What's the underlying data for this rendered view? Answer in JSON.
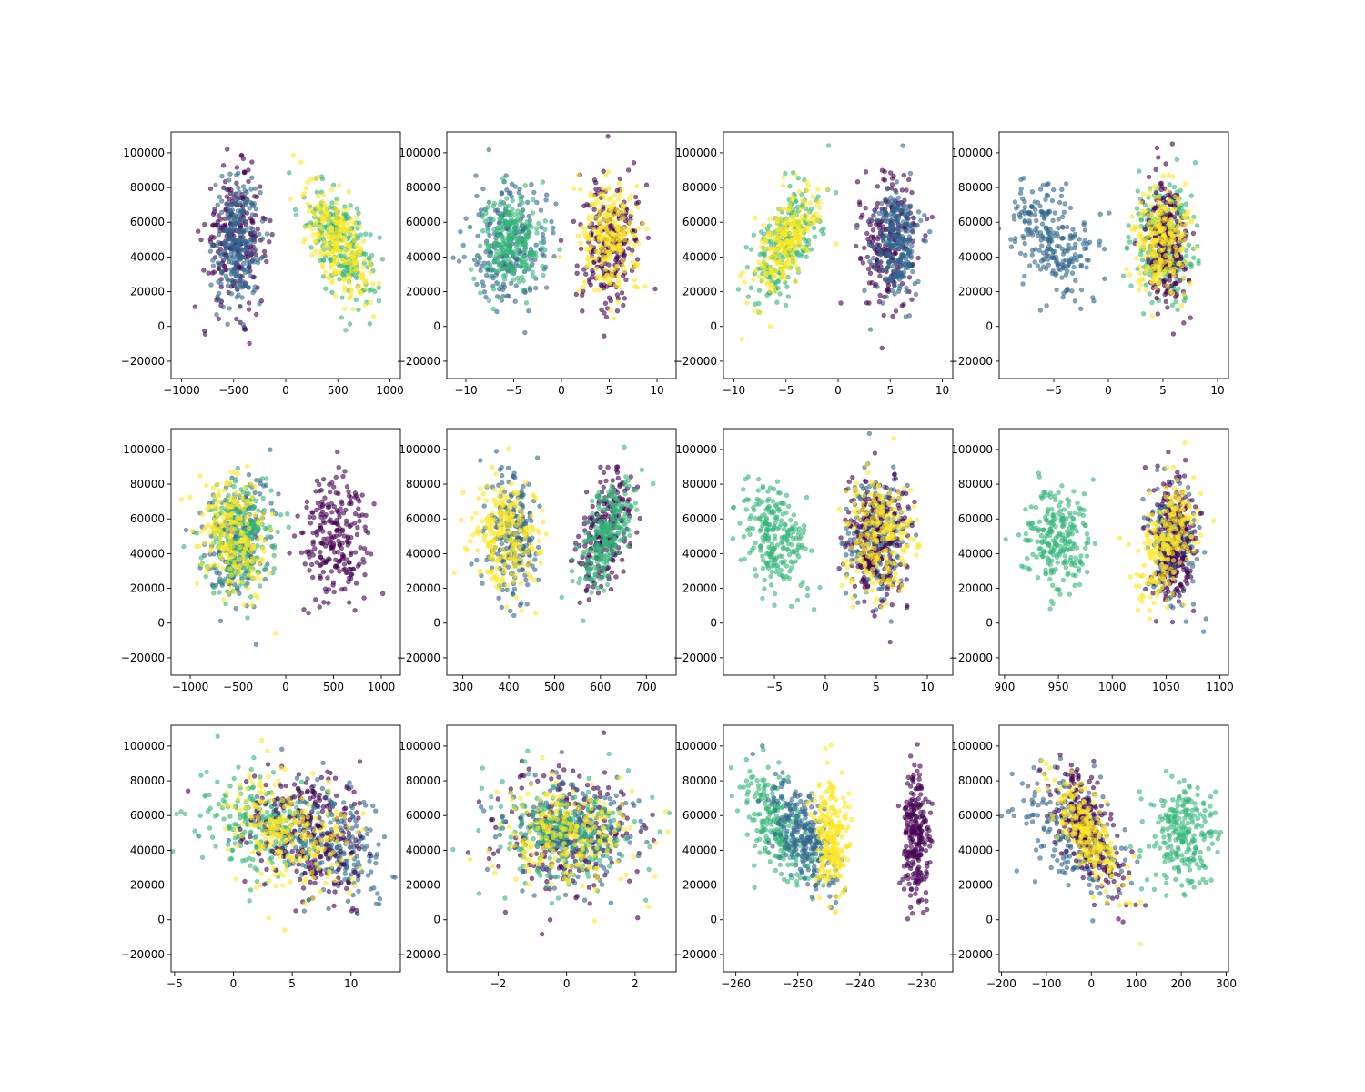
{
  "figure": {
    "colors": {
      "series_1": "#440154",
      "series_2": "#31688e",
      "series_3": "#35b779",
      "series_4": "#fde725"
    },
    "point_alpha": 0.6
  },
  "chart_data": [
    {
      "type": "scatter",
      "grid": false,
      "xlim": [
        -1100,
        1100
      ],
      "ylim": [
        -30000,
        112000
      ],
      "xticks": [
        -1000,
        -500,
        0,
        500,
        1000
      ],
      "xticklabels": [
        "−1000",
        "−500",
        "0",
        "500",
        "1000"
      ],
      "yticks": [
        -20000,
        0,
        20000,
        40000,
        60000,
        80000,
        100000
      ],
      "yticklabels": [
        "−20000",
        "0",
        "20000",
        "40000",
        "60000",
        "80000",
        "100000"
      ],
      "clusters": [
        {
          "color": "series_1",
          "cx": -480,
          "cy": 50000,
          "sx": 150,
          "sy": 19000,
          "rho": 0,
          "n": 240
        },
        {
          "color": "series_2",
          "cx": -460,
          "cy": 48000,
          "sx": 110,
          "sy": 18000,
          "rho": 0,
          "n": 240
        },
        {
          "color": "series_3",
          "cx": 530,
          "cy": 48000,
          "sx": 170,
          "sy": 17000,
          "rho": -0.55,
          "n": 240
        },
        {
          "color": "series_4",
          "cx": 520,
          "cy": 47000,
          "sx": 150,
          "sy": 17000,
          "rho": -0.6,
          "n": 240
        }
      ]
    },
    {
      "type": "scatter",
      "grid": false,
      "xlim": [
        -12,
        12
      ],
      "ylim": [
        -30000,
        112000
      ],
      "xticks": [
        -10,
        -5,
        0,
        5,
        10
      ],
      "xticklabels": [
        "−10",
        "−5",
        "0",
        "5",
        "10"
      ],
      "yticks": [
        -20000,
        0,
        20000,
        40000,
        60000,
        80000,
        100000
      ],
      "yticklabels": [
        "−20000",
        "0",
        "20000",
        "40000",
        "60000",
        "80000",
        "100000"
      ],
      "clusters": [
        {
          "color": "series_2",
          "cx": -5.5,
          "cy": 48000,
          "sx": 2.0,
          "sy": 17000,
          "rho": 0,
          "n": 240
        },
        {
          "color": "series_3",
          "cx": -5.2,
          "cy": 49000,
          "sx": 1.6,
          "sy": 14000,
          "rho": 0,
          "n": 240
        },
        {
          "color": "series_1",
          "cx": 5.0,
          "cy": 48000,
          "sx": 1.5,
          "sy": 19000,
          "rho": 0,
          "n": 240
        },
        {
          "color": "series_4",
          "cx": 5.0,
          "cy": 50000,
          "sx": 1.5,
          "sy": 16000,
          "rho": 0,
          "n": 240
        }
      ]
    },
    {
      "type": "scatter",
      "grid": false,
      "xlim": [
        -11,
        11
      ],
      "ylim": [
        -30000,
        112000
      ],
      "xticks": [
        -10,
        -5,
        0,
        5,
        10
      ],
      "xticklabels": [
        "−10",
        "−5",
        "0",
        "5",
        "10"
      ],
      "yticks": [
        -20000,
        0,
        20000,
        40000,
        60000,
        80000,
        100000
      ],
      "yticklabels": [
        "−20000",
        "0",
        "20000",
        "40000",
        "60000",
        "80000",
        "100000"
      ],
      "clusters": [
        {
          "color": "series_3",
          "cx": -5.0,
          "cy": 48000,
          "sx": 1.7,
          "sy": 17000,
          "rho": 0.6,
          "n": 240
        },
        {
          "color": "series_4",
          "cx": -5.0,
          "cy": 47000,
          "sx": 1.5,
          "sy": 16000,
          "rho": 0.6,
          "n": 240
        },
        {
          "color": "series_1",
          "cx": 5.0,
          "cy": 50000,
          "sx": 1.4,
          "sy": 19000,
          "rho": 0,
          "n": 240
        },
        {
          "color": "series_2",
          "cx": 5.5,
          "cy": 47000,
          "sx": 1.1,
          "sy": 17000,
          "rho": 0,
          "n": 240
        }
      ]
    },
    {
      "type": "scatter",
      "grid": false,
      "xlim": [
        -10,
        11
      ],
      "ylim": [
        -30000,
        112000
      ],
      "xticks": [
        -5,
        0,
        5,
        10
      ],
      "xticklabels": [
        "−5",
        "0",
        "5",
        "10"
      ],
      "yticks": [
        -20000,
        0,
        20000,
        40000,
        60000,
        80000,
        100000
      ],
      "yticklabels": [
        "−20000",
        "0",
        "20000",
        "40000",
        "60000",
        "80000",
        "100000"
      ],
      "clusters": [
        {
          "color": "series_2",
          "cx": -5.2,
          "cy": 50000,
          "sx": 1.8,
          "sy": 17000,
          "rho": -0.3,
          "n": 240
        },
        {
          "color": "series_3",
          "cx": 5.0,
          "cy": 50000,
          "sx": 1.4,
          "sy": 16000,
          "rho": 0,
          "n": 240
        },
        {
          "color": "series_1",
          "cx": 5.3,
          "cy": 50000,
          "sx": 0.9,
          "sy": 19000,
          "rho": 0,
          "n": 240
        },
        {
          "color": "series_4",
          "cx": 5.0,
          "cy": 50000,
          "sx": 1.3,
          "sy": 16000,
          "rho": 0,
          "n": 240
        }
      ]
    },
    {
      "type": "scatter",
      "grid": false,
      "xlim": [
        -1200,
        1200
      ],
      "ylim": [
        -30000,
        112000
      ],
      "xticks": [
        -1000,
        -500,
        0,
        500,
        1000
      ],
      "xticklabels": [
        "−1000",
        "−500",
        "0",
        "500",
        "1000"
      ],
      "yticks": [
        -20000,
        0,
        20000,
        40000,
        60000,
        80000,
        100000
      ],
      "yticklabels": [
        "−20000",
        "0",
        "20000",
        "40000",
        "60000",
        "80000",
        "100000"
      ],
      "clusters": [
        {
          "color": "series_2",
          "cx": -500,
          "cy": 48000,
          "sx": 160,
          "sy": 18000,
          "rho": 0,
          "n": 240
        },
        {
          "color": "series_3",
          "cx": -470,
          "cy": 50000,
          "sx": 170,
          "sy": 16000,
          "rho": 0,
          "n": 240
        },
        {
          "color": "series_4",
          "cx": -560,
          "cy": 52000,
          "sx": 180,
          "sy": 17000,
          "rho": -0.2,
          "n": 240
        },
        {
          "color": "series_1",
          "cx": 500,
          "cy": 48000,
          "sx": 190,
          "sy": 18000,
          "rho": 0,
          "n": 240
        }
      ]
    },
    {
      "type": "scatter",
      "grid": false,
      "xlim": [
        265,
        765
      ],
      "ylim": [
        -30000,
        112000
      ],
      "xticks": [
        300,
        400,
        500,
        600,
        700
      ],
      "xticklabels": [
        "300",
        "400",
        "500",
        "600",
        "700"
      ],
      "yticks": [
        -20000,
        0,
        20000,
        40000,
        60000,
        80000,
        100000
      ],
      "yticklabels": [
        "−20000",
        "0",
        "20000",
        "40000",
        "60000",
        "80000",
        "100000"
      ],
      "clusters": [
        {
          "color": "series_2",
          "cx": 410,
          "cy": 50000,
          "sx": 28,
          "sy": 17000,
          "rho": 0,
          "n": 240
        },
        {
          "color": "series_4",
          "cx": 395,
          "cy": 52000,
          "sx": 38,
          "sy": 17000,
          "rho": 0,
          "n": 240
        },
        {
          "color": "series_1",
          "cx": 610,
          "cy": 50000,
          "sx": 30,
          "sy": 18000,
          "rho": 0.5,
          "n": 240
        },
        {
          "color": "series_3",
          "cx": 610,
          "cy": 50000,
          "sx": 28,
          "sy": 16000,
          "rho": 0.6,
          "n": 240
        }
      ]
    },
    {
      "type": "scatter",
      "grid": false,
      "xlim": [
        -10,
        12.5
      ],
      "ylim": [
        -30000,
        112000
      ],
      "xticks": [
        -5,
        0,
        5,
        10
      ],
      "xticklabels": [
        "−5",
        "0",
        "5",
        "10"
      ],
      "yticks": [
        -20000,
        0,
        20000,
        40000,
        60000,
        80000,
        100000
      ],
      "yticklabels": [
        "−20000",
        "0",
        "20000",
        "40000",
        "60000",
        "80000",
        "100000"
      ],
      "clusters": [
        {
          "color": "series_3",
          "cx": -5.0,
          "cy": 50000,
          "sx": 1.6,
          "sy": 15000,
          "rho": -0.3,
          "n": 240
        },
        {
          "color": "series_2",
          "cx": 5.0,
          "cy": 50000,
          "sx": 1.5,
          "sy": 17000,
          "rho": 0,
          "n": 240
        },
        {
          "color": "series_1",
          "cx": 5.0,
          "cy": 48000,
          "sx": 1.5,
          "sy": 19000,
          "rho": 0,
          "n": 240
        },
        {
          "color": "series_4",
          "cx": 5.2,
          "cy": 50000,
          "sx": 1.7,
          "sy": 16000,
          "rho": 0,
          "n": 240
        }
      ]
    },
    {
      "type": "scatter",
      "grid": false,
      "xlim": [
        895,
        1108
      ],
      "ylim": [
        -30000,
        112000
      ],
      "xticks": [
        900,
        950,
        1000,
        1050,
        1100
      ],
      "xticklabels": [
        "900",
        "950",
        "1000",
        "1050",
        "1100"
      ],
      "yticks": [
        -20000,
        0,
        20000,
        40000,
        60000,
        80000,
        100000
      ],
      "yticklabels": [
        "−20000",
        "0",
        "20000",
        "40000",
        "60000",
        "80000",
        "100000"
      ],
      "clusters": [
        {
          "color": "series_3",
          "cx": 950,
          "cy": 50000,
          "sx": 15,
          "sy": 15000,
          "rho": 0,
          "n": 240
        },
        {
          "color": "series_2",
          "cx": 1055,
          "cy": 48000,
          "sx": 11,
          "sy": 17000,
          "rho": 0,
          "n": 240
        },
        {
          "color": "series_1",
          "cx": 1058,
          "cy": 46000,
          "sx": 10,
          "sy": 19000,
          "rho": 0,
          "n": 240
        },
        {
          "color": "series_4",
          "cx": 1050,
          "cy": 48000,
          "sx": 14,
          "sy": 17000,
          "rho": 0.5,
          "n": 240
        }
      ]
    },
    {
      "type": "scatter",
      "grid": false,
      "xlim": [
        -5.3,
        14.2
      ],
      "ylim": [
        -30000,
        112000
      ],
      "xticks": [
        -5,
        0,
        5,
        10
      ],
      "xticklabels": [
        "−5",
        "0",
        "5",
        "10"
      ],
      "yticks": [
        -20000,
        0,
        20000,
        40000,
        60000,
        80000,
        100000
      ],
      "yticklabels": [
        "−20000",
        "0",
        "20000",
        "40000",
        "60000",
        "80000",
        "100000"
      ],
      "clusters": [
        {
          "color": "series_3",
          "cx": 2.5,
          "cy": 55000,
          "sx": 2.6,
          "sy": 15000,
          "rho": -0.2,
          "n": 240
        },
        {
          "color": "series_2",
          "cx": 8.5,
          "cy": 45000,
          "sx": 2.4,
          "sy": 16000,
          "rho": -0.3,
          "n": 240
        },
        {
          "color": "series_1",
          "cx": 6.5,
          "cy": 50000,
          "sx": 2.5,
          "sy": 19000,
          "rho": -0.2,
          "n": 240
        },
        {
          "color": "series_4",
          "cx": 4.5,
          "cy": 52000,
          "sx": 2.5,
          "sy": 16000,
          "rho": -0.3,
          "n": 240
        }
      ]
    },
    {
      "type": "scatter",
      "grid": false,
      "xlim": [
        -3.5,
        3.2
      ],
      "ylim": [
        -30000,
        112000
      ],
      "xticks": [
        -2,
        0,
        2
      ],
      "xticklabels": [
        "−2",
        "0",
        "2"
      ],
      "yticks": [
        -20000,
        0,
        20000,
        40000,
        60000,
        80000,
        100000
      ],
      "yticklabels": [
        "−20000",
        "0",
        "20000",
        "40000",
        "60000",
        "80000",
        "100000"
      ],
      "clusters": [
        {
          "color": "series_1",
          "cx": 0.0,
          "cy": 48000,
          "sx": 1.0,
          "sy": 19000,
          "rho": 0,
          "n": 240
        },
        {
          "color": "series_2",
          "cx": 0.0,
          "cy": 50000,
          "sx": 1.0,
          "sy": 16000,
          "rho": 0,
          "n": 240
        },
        {
          "color": "series_3",
          "cx": -0.1,
          "cy": 50000,
          "sx": 1.0,
          "sy": 15000,
          "rho": 0,
          "n": 240
        },
        {
          "color": "series_4",
          "cx": 0.0,
          "cy": 48000,
          "sx": 1.0,
          "sy": 17000,
          "rho": 0,
          "n": 240
        }
      ]
    },
    {
      "type": "scatter",
      "grid": false,
      "xlim": [
        -262,
        -225
      ],
      "ylim": [
        -30000,
        112000
      ],
      "xticks": [
        -260,
        -250,
        -240,
        -230
      ],
      "xticklabels": [
        "−260",
        "−250",
        "−240",
        "−230"
      ],
      "yticks": [
        -20000,
        0,
        20000,
        40000,
        60000,
        80000,
        100000
      ],
      "yticklabels": [
        "−20000",
        "0",
        "20000",
        "40000",
        "60000",
        "80000",
        "100000"
      ],
      "clusters": [
        {
          "color": "series_3",
          "cx": -253,
          "cy": 52000,
          "sx": 3.0,
          "sy": 16000,
          "rho": -0.6,
          "n": 240
        },
        {
          "color": "series_2",
          "cx": -249,
          "cy": 48000,
          "sx": 2.6,
          "sy": 16000,
          "rho": -0.6,
          "n": 240
        },
        {
          "color": "series_4",
          "cx": -244.5,
          "cy": 48000,
          "sx": 1.3,
          "sy": 17000,
          "rho": 0,
          "n": 240
        },
        {
          "color": "series_1",
          "cx": -231,
          "cy": 50000,
          "sx": 1.1,
          "sy": 19000,
          "rho": 0,
          "n": 240
        }
      ]
    },
    {
      "type": "scatter",
      "grid": false,
      "xlim": [
        -205,
        305
      ],
      "ylim": [
        -30000,
        112000
      ],
      "xticks": [
        -200,
        -100,
        0,
        100,
        200,
        300
      ],
      "xticklabels": [
        "−200",
        "−100",
        "0",
        "100",
        "200",
        "300"
      ],
      "yticks": [
        -20000,
        0,
        20000,
        40000,
        60000,
        80000,
        100000
      ],
      "yticklabels": [
        "−20000",
        "0",
        "20000",
        "40000",
        "60000",
        "80000",
        "100000"
      ],
      "clusters": [
        {
          "color": "series_2",
          "cx": -50,
          "cy": 52000,
          "sx": 55,
          "sy": 17000,
          "rho": -0.4,
          "n": 240
        },
        {
          "color": "series_1",
          "cx": -10,
          "cy": 52000,
          "sx": 40,
          "sy": 19000,
          "rho": -0.7,
          "n": 240
        },
        {
          "color": "series_4",
          "cx": -10,
          "cy": 50000,
          "sx": 38,
          "sy": 16000,
          "rho": -0.7,
          "n": 240
        },
        {
          "color": "series_3",
          "cx": 205,
          "cy": 48000,
          "sx": 38,
          "sy": 15000,
          "rho": 0,
          "n": 240
        }
      ]
    }
  ]
}
